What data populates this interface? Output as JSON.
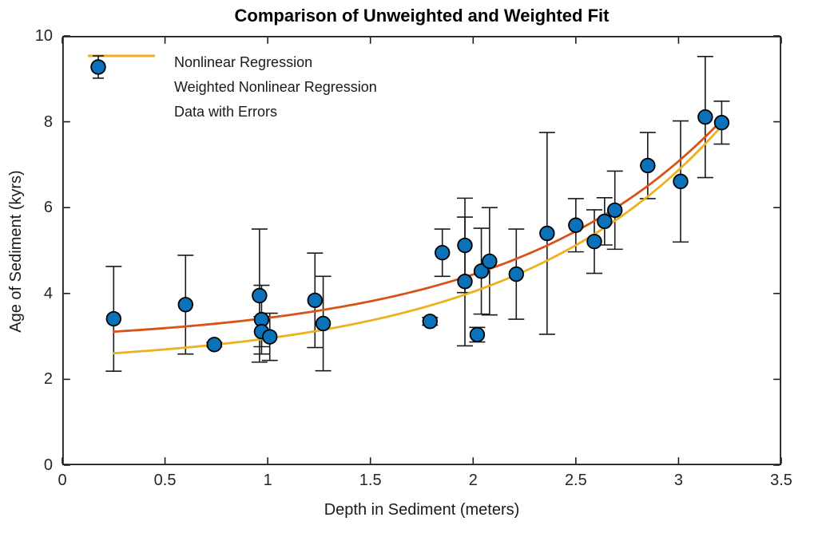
{
  "figure": {
    "title": "Comparison of Unweighted and Weighted Fit",
    "xlabel": "Depth in Sediment (meters)",
    "ylabel": "Age of Sediment (kyrs)"
  },
  "legend": {
    "items": [
      {
        "label": "Nonlinear Regression",
        "type": "line",
        "color": "#D95319"
      },
      {
        "label": "Weighted Nonlinear Regression",
        "type": "line",
        "color": "#EDB120"
      },
      {
        "label": "Data with Errors",
        "type": "errorbar-marker",
        "marker_color": "#0B72B9",
        "edge_color": "#000000",
        "bar_color": "#1a1a1a"
      }
    ]
  },
  "chart_data": {
    "type": "scatter",
    "title": "Comparison of Unweighted and Weighted Fit",
    "xlabel": "Depth in Sediment (meters)",
    "ylabel": "Age of Sediment (kyrs)",
    "xlim": [
      0,
      3.5
    ],
    "ylim": [
      0,
      10
    ],
    "grid": false,
    "legend_position": "northwest-inside",
    "axes_color": "#1c1c1c",
    "x_ticks": {
      "values": [
        0,
        0.5,
        1,
        1.5,
        2,
        2.5,
        3,
        3.5
      ],
      "labels": [
        "0",
        "0.5",
        "1",
        "1.5",
        "2",
        "2.5",
        "3",
        "3.5"
      ]
    },
    "y_ticks": {
      "values": [
        0,
        2,
        4,
        6,
        8,
        10
      ],
      "labels": [
        "0",
        "2",
        "4",
        "6",
        "8",
        "10"
      ]
    },
    "point_format": [
      "depth_m",
      "age_kyrs",
      "error_kyrs"
    ],
    "series": [
      {
        "name": "Data with Errors",
        "type": "scatter-errorbar",
        "marker_color": "#0B72B9",
        "marker_edge_color": "#000000",
        "errorbar_color": "#1a1a1a",
        "points": [
          [
            0.25,
            3.41,
            1.22
          ],
          [
            0.6,
            3.74,
            1.15
          ],
          [
            0.74,
            2.81,
            0.05
          ],
          [
            0.96,
            3.95,
            1.55
          ],
          [
            0.97,
            3.39,
            0.8
          ],
          [
            0.97,
            3.11,
            0.35
          ],
          [
            1.01,
            2.99,
            0.55
          ],
          [
            1.23,
            3.84,
            1.1
          ],
          [
            1.27,
            3.3,
            1.1
          ],
          [
            1.79,
            3.35,
            0.09
          ],
          [
            1.85,
            4.95,
            0.55
          ],
          [
            1.96,
            5.12,
            1.1
          ],
          [
            1.96,
            4.28,
            1.5
          ],
          [
            2.02,
            3.04,
            0.17
          ],
          [
            2.04,
            4.52,
            1.0
          ],
          [
            2.08,
            4.75,
            1.25
          ],
          [
            2.21,
            4.45,
            1.05
          ],
          [
            2.36,
            5.4,
            2.35
          ],
          [
            2.5,
            5.59,
            0.62
          ],
          [
            2.59,
            5.21,
            0.74
          ],
          [
            2.64,
            5.68,
            0.55
          ],
          [
            2.69,
            5.94,
            0.91
          ],
          [
            2.85,
            6.98,
            0.77
          ],
          [
            3.01,
            6.61,
            1.41
          ],
          [
            3.13,
            8.11,
            1.41
          ],
          [
            3.21,
            7.98,
            0.5
          ]
        ]
      },
      {
        "name": "Nonlinear Regression",
        "type": "line",
        "color": "#D95319",
        "fit": {
          "model": "a + b*exp(c*x)",
          "a": 2.805,
          "b": 0.24,
          "c": 0.96,
          "x_start": 0.25,
          "x_end": 3.21
        }
      },
      {
        "name": "Weighted Nonlinear Regression",
        "type": "line",
        "color": "#EDB120",
        "fit": {
          "model": "a + b*exp(c*x)",
          "a": 2.28,
          "b": 0.258,
          "c": 0.96,
          "x_start": 0.25,
          "x_end": 3.21
        }
      }
    ]
  }
}
